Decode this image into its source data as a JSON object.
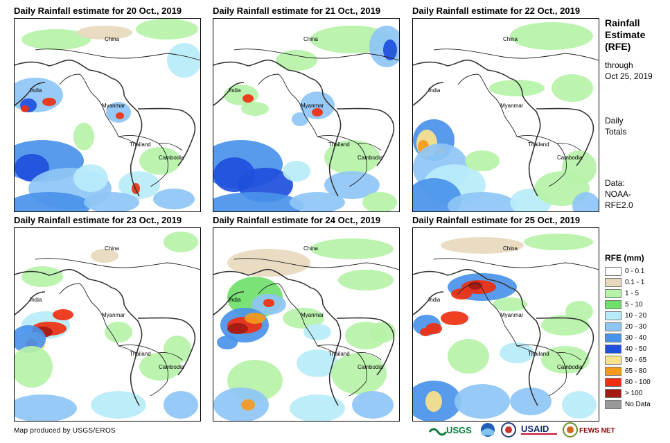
{
  "panels": [
    {
      "title": "Daily Rainfall estimate for 20 Oct., 2019",
      "pattern": "p1"
    },
    {
      "title": "Daily Rainfall estimate for 21 Oct., 2019",
      "pattern": "p2"
    },
    {
      "title": "Daily Rainfall estimate for 22 Oct., 2019",
      "pattern": "p3"
    },
    {
      "title": "Daily Rainfall estimate for 23 Oct., 2019",
      "pattern": "p4"
    },
    {
      "title": "Daily Rainfall estimate for 24 Oct., 2019",
      "pattern": "p5"
    },
    {
      "title": "Daily Rainfall estimate for 25 Oct., 2019",
      "pattern": "p6"
    }
  ],
  "map_labels": {
    "china": "China",
    "india": "India",
    "myanmar": "Myanmar",
    "thailand": "Thailand",
    "cambodia": "Cambodia"
  },
  "sidebar": {
    "title_line1": "Rainfall",
    "title_line2": "Estimate",
    "title_line3": "(RFE)",
    "through": "through",
    "date": "Oct 25, 2019",
    "daily": "Daily",
    "totals": "Totals",
    "data_label": "Data:",
    "noaa": "NOAA-",
    "rfe": "RFE2.0"
  },
  "legend": {
    "title": "RFE (mm)",
    "items": [
      {
        "label": "0 - 0.1",
        "color": "#ffffff"
      },
      {
        "label": "0.1 - 1",
        "color": "#e8d9bd"
      },
      {
        "label": "1 - 5",
        "color": "#b6f2a8"
      },
      {
        "label": "5 - 10",
        "color": "#6fe06a"
      },
      {
        "label": "10 - 20",
        "color": "#b8ecfa"
      },
      {
        "label": "20 - 30",
        "color": "#8ec5f5"
      },
      {
        "label": "30 - 40",
        "color": "#4a93ea"
      },
      {
        "label": "40 - 50",
        "color": "#1e4fdc"
      },
      {
        "label": "50 - 65",
        "color": "#fbe28a"
      },
      {
        "label": "65 - 80",
        "color": "#f59a1c"
      },
      {
        "label": "80 - 100",
        "color": "#ee3010"
      },
      {
        "label": "> 100",
        "color": "#a31a12"
      },
      {
        "label": "No Data",
        "color": "#999999"
      }
    ]
  },
  "credit": "Map produced by USGS/EROS",
  "logos": {
    "usgs": "USGS",
    "usaid": "USAID",
    "fews": "FEWS NET"
  }
}
